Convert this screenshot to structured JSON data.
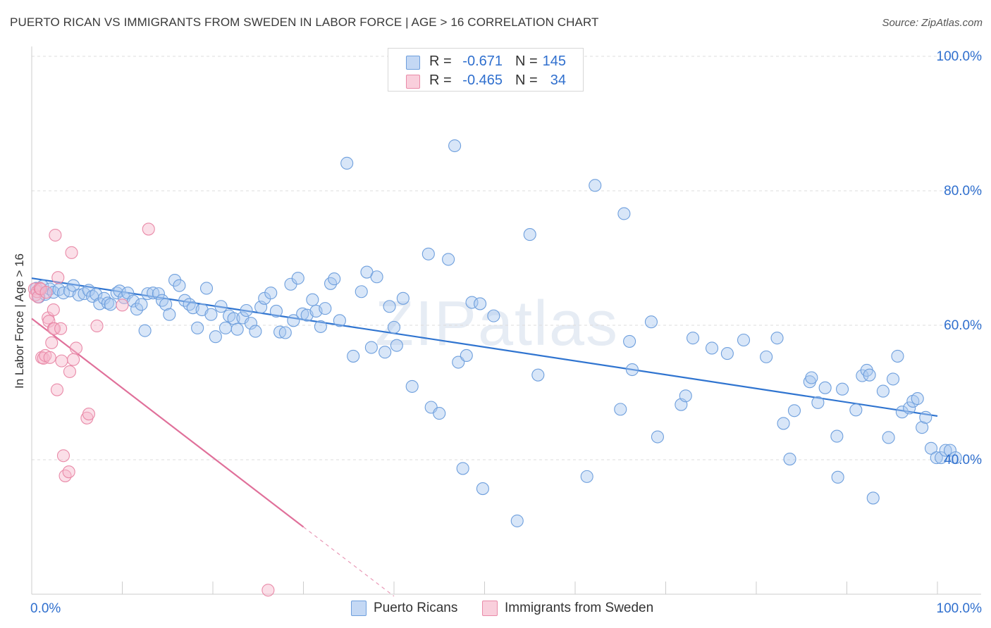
{
  "title": "PUERTO RICAN VS IMMIGRANTS FROM SWEDEN IN LABOR FORCE | AGE > 16 CORRELATION CHART",
  "source": "Source: ZipAtlas.com",
  "watermark": "ZIPatlas",
  "colors": {
    "blue_fill": "#a9c7ef",
    "blue_stroke": "#6e9fdd",
    "blue_line": "#2f74d0",
    "pink_fill": "#f6b7cb",
    "pink_stroke": "#e98aa8",
    "pink_line": "#e0709a",
    "accent_text": "#2f6fce",
    "grid": "#dddddd"
  },
  "legend_top": {
    "rows": [
      {
        "swatch": "blue",
        "r_label": "R =",
        "r_value": "-0.671",
        "n_label": "N =",
        "n_value": "145"
      },
      {
        "swatch": "pink",
        "r_label": "R =",
        "r_value": "-0.465",
        "n_label": "N =",
        "n_value": "34"
      }
    ]
  },
  "legend_bottom": [
    {
      "swatch": "blue",
      "label": "Puerto Ricans"
    },
    {
      "swatch": "pink",
      "label": "Immigrants from Sweden"
    }
  ],
  "chart_data": {
    "type": "scatter",
    "ylabel": "In Labor Force | Age > 16",
    "xlim": [
      0,
      100
    ],
    "ylim": [
      20,
      100
    ],
    "x_tick_labels": [
      {
        "x": 0,
        "label": "0.0%"
      },
      {
        "x": 100,
        "label": "100.0%"
      }
    ],
    "y_tick_labels": [
      {
        "y": 40,
        "label": "40.0%"
      },
      {
        "y": 60,
        "label": "60.0%"
      },
      {
        "y": 80,
        "label": "80.0%"
      },
      {
        "y": 100,
        "label": "100.0%"
      }
    ],
    "grid": true,
    "legend_position": "top-center",
    "series": [
      {
        "name": "Puerto Ricans",
        "color": "blue",
        "trend": {
          "x": [
            0,
            100
          ],
          "y": [
            67.0,
            46.5
          ]
        },
        "points": [
          [
            0.5,
            65.5
          ],
          [
            0.8,
            64.2
          ],
          [
            1.2,
            65.8
          ],
          [
            1.5,
            64.6
          ],
          [
            2.0,
            65.4
          ],
          [
            2.4,
            64.9
          ],
          [
            3.0,
            65.3
          ],
          [
            3.5,
            64.8
          ],
          [
            4.2,
            65.1
          ],
          [
            4.6,
            65.9
          ],
          [
            5.2,
            64.5
          ],
          [
            5.8,
            64.7
          ],
          [
            6.3,
            65.2
          ],
          [
            6.7,
            64.3
          ],
          [
            7.1,
            64.6
          ],
          [
            7.5,
            63.2
          ],
          [
            8.0,
            64.0
          ],
          [
            8.4,
            63.3
          ],
          [
            8.7,
            63.1
          ],
          [
            9.4,
            64.8
          ],
          [
            9.7,
            65.1
          ],
          [
            10.2,
            64.1
          ],
          [
            10.6,
            64.8
          ],
          [
            11.2,
            63.6
          ],
          [
            11.6,
            62.4
          ],
          [
            12.1,
            63.1
          ],
          [
            12.5,
            59.2
          ],
          [
            12.8,
            64.7
          ],
          [
            13.4,
            64.8
          ],
          [
            14.0,
            64.7
          ],
          [
            14.4,
            63.7
          ],
          [
            14.8,
            63.1
          ],
          [
            15.2,
            61.6
          ],
          [
            15.8,
            66.7
          ],
          [
            16.3,
            65.9
          ],
          [
            16.9,
            63.7
          ],
          [
            17.4,
            63.1
          ],
          [
            17.8,
            62.6
          ],
          [
            18.3,
            59.6
          ],
          [
            18.8,
            62.3
          ],
          [
            19.3,
            65.5
          ],
          [
            19.8,
            61.6
          ],
          [
            20.3,
            58.3
          ],
          [
            20.9,
            62.8
          ],
          [
            21.4,
            59.6
          ],
          [
            21.8,
            61.4
          ],
          [
            22.3,
            61.0
          ],
          [
            22.7,
            59.4
          ],
          [
            23.3,
            61.1
          ],
          [
            23.7,
            62.2
          ],
          [
            24.2,
            60.3
          ],
          [
            24.7,
            59.1
          ],
          [
            25.3,
            62.7
          ],
          [
            25.7,
            64.0
          ],
          [
            26.4,
            64.8
          ],
          [
            27.0,
            62.1
          ],
          [
            27.4,
            59.0
          ],
          [
            28.0,
            58.9
          ],
          [
            28.6,
            66.1
          ],
          [
            28.9,
            60.7
          ],
          [
            29.4,
            67.0
          ],
          [
            29.9,
            61.7
          ],
          [
            30.4,
            61.5
          ],
          [
            31.0,
            63.8
          ],
          [
            31.4,
            62.1
          ],
          [
            31.9,
            59.8
          ],
          [
            32.4,
            62.5
          ],
          [
            33.0,
            66.2
          ],
          [
            33.4,
            66.9
          ],
          [
            34.0,
            60.7
          ],
          [
            34.8,
            84.1
          ],
          [
            35.5,
            55.4
          ],
          [
            36.4,
            65.0
          ],
          [
            37.0,
            67.9
          ],
          [
            37.5,
            56.7
          ],
          [
            38.1,
            67.2
          ],
          [
            39.0,
            56.0
          ],
          [
            39.5,
            62.8
          ],
          [
            40.0,
            59.7
          ],
          [
            40.3,
            57.0
          ],
          [
            41.0,
            64.0
          ],
          [
            42.0,
            50.9
          ],
          [
            43.8,
            70.6
          ],
          [
            44.1,
            47.8
          ],
          [
            45.0,
            46.9
          ],
          [
            46.0,
            69.8
          ],
          [
            46.7,
            86.7
          ],
          [
            47.1,
            54.5
          ],
          [
            47.6,
            38.7
          ],
          [
            48.0,
            55.5
          ],
          [
            48.6,
            63.4
          ],
          [
            49.5,
            63.2
          ],
          [
            49.8,
            35.7
          ],
          [
            51.0,
            61.4
          ],
          [
            53.6,
            30.9
          ],
          [
            55.0,
            73.5
          ],
          [
            55.9,
            52.6
          ],
          [
            61.3,
            37.5
          ],
          [
            62.2,
            80.8
          ],
          [
            65.0,
            47.5
          ],
          [
            65.4,
            76.6
          ],
          [
            66.0,
            57.6
          ],
          [
            66.3,
            53.4
          ],
          [
            68.4,
            60.5
          ],
          [
            69.1,
            43.4
          ],
          [
            71.7,
            48.2
          ],
          [
            72.2,
            49.5
          ],
          [
            73.0,
            58.1
          ],
          [
            75.1,
            56.6
          ],
          [
            76.8,
            55.8
          ],
          [
            78.6,
            57.8
          ],
          [
            81.1,
            55.3
          ],
          [
            82.3,
            58.1
          ],
          [
            83.0,
            45.4
          ],
          [
            83.7,
            40.1
          ],
          [
            84.2,
            47.3
          ],
          [
            85.9,
            51.6
          ],
          [
            86.1,
            52.2
          ],
          [
            86.8,
            48.5
          ],
          [
            87.6,
            50.7
          ],
          [
            88.9,
            43.5
          ],
          [
            89.0,
            37.4
          ],
          [
            89.5,
            50.5
          ],
          [
            91.0,
            47.4
          ],
          [
            91.7,
            52.5
          ],
          [
            92.2,
            53.3
          ],
          [
            92.5,
            52.6
          ],
          [
            92.9,
            34.3
          ],
          [
            94.0,
            50.2
          ],
          [
            94.6,
            43.3
          ],
          [
            95.1,
            52.0
          ],
          [
            95.6,
            55.4
          ],
          [
            96.1,
            47.1
          ],
          [
            96.9,
            47.7
          ],
          [
            97.3,
            48.7
          ],
          [
            97.8,
            49.1
          ],
          [
            98.3,
            44.8
          ],
          [
            98.7,
            46.3
          ],
          [
            99.3,
            41.7
          ],
          [
            99.9,
            40.3
          ],
          [
            100.4,
            40.3
          ],
          [
            100.9,
            41.4
          ],
          [
            101.4,
            41.4
          ],
          [
            102.0,
            40.3
          ]
        ]
      },
      {
        "name": "Immigrants from Sweden",
        "color": "pink",
        "trend": {
          "x": [
            0,
            30
          ],
          "y": [
            61.0,
            30.0
          ],
          "dashed_extension": {
            "x": [
              30,
              40
            ],
            "y": [
              30.0,
              19.7
            ]
          }
        },
        "points": [
          [
            0.3,
            65.4
          ],
          [
            0.4,
            64.5
          ],
          [
            0.6,
            65.0
          ],
          [
            0.7,
            64.2
          ],
          [
            0.9,
            65.5
          ],
          [
            1.0,
            65.4
          ],
          [
            1.1,
            55.2
          ],
          [
            1.3,
            55.1
          ],
          [
            1.5,
            55.5
          ],
          [
            1.6,
            64.9
          ],
          [
            1.8,
            61.1
          ],
          [
            1.9,
            60.6
          ],
          [
            2.0,
            55.2
          ],
          [
            2.2,
            57.4
          ],
          [
            2.4,
            59.5
          ],
          [
            2.4,
            62.3
          ],
          [
            2.5,
            59.5
          ],
          [
            2.6,
            73.4
          ],
          [
            2.8,
            50.4
          ],
          [
            2.9,
            67.1
          ],
          [
            3.2,
            59.5
          ],
          [
            3.3,
            54.7
          ],
          [
            3.5,
            40.6
          ],
          [
            3.7,
            37.6
          ],
          [
            4.1,
            38.2
          ],
          [
            4.2,
            53.1
          ],
          [
            4.4,
            70.8
          ],
          [
            4.6,
            54.9
          ],
          [
            4.9,
            56.6
          ],
          [
            6.1,
            46.2
          ],
          [
            6.3,
            46.8
          ],
          [
            7.2,
            59.9
          ],
          [
            10.0,
            63.0
          ],
          [
            12.9,
            74.3
          ],
          [
            26.1,
            20.6
          ]
        ]
      }
    ]
  }
}
